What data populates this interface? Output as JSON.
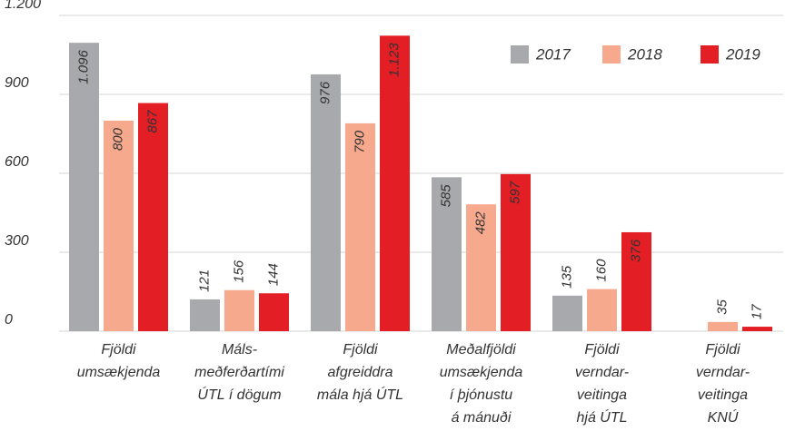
{
  "chart_data": {
    "type": "bar",
    "categories": [
      [
        "Fjöldi",
        "umsækjenda"
      ],
      [
        "Máls-",
        "meðferðartími",
        "ÚTL í dögum"
      ],
      [
        "Fjöldi",
        "afgreiddra",
        "mála hjá ÚTL"
      ],
      [
        "Meðalfjöldi",
        "umsækjenda",
        "í þjónustu",
        "á mánuði"
      ],
      [
        "Fjöldi",
        "verndar-",
        "veitinga",
        "hjá ÚTL"
      ],
      [
        "Fjöldi",
        "verndar-",
        "veitinga",
        "KNÚ"
      ]
    ],
    "series": [
      {
        "name": "2017",
        "color": "#a7a9ac",
        "values": [
          1096,
          121,
          976,
          585,
          135,
          null
        ],
        "value_labels": [
          "1.096",
          "121",
          "976",
          "585",
          "135",
          null
        ]
      },
      {
        "name": "2018",
        "color": "#f7a98e",
        "values": [
          800,
          156,
          790,
          482,
          160,
          35
        ],
        "value_labels": [
          "800",
          "156",
          "790",
          "482",
          "160",
          "35"
        ]
      },
      {
        "name": "2019",
        "color": "#e31e24",
        "values": [
          867,
          144,
          1123,
          597,
          376,
          17
        ],
        "value_labels": [
          "867",
          "144",
          "1.123",
          "597",
          "376",
          "17"
        ]
      }
    ],
    "ylim": [
      0,
      1200
    ],
    "yticks": [
      0,
      300,
      600,
      900,
      {
        "value": 1200,
        "label": "1.200"
      }
    ],
    "grid": true,
    "legend": "top-right"
  }
}
